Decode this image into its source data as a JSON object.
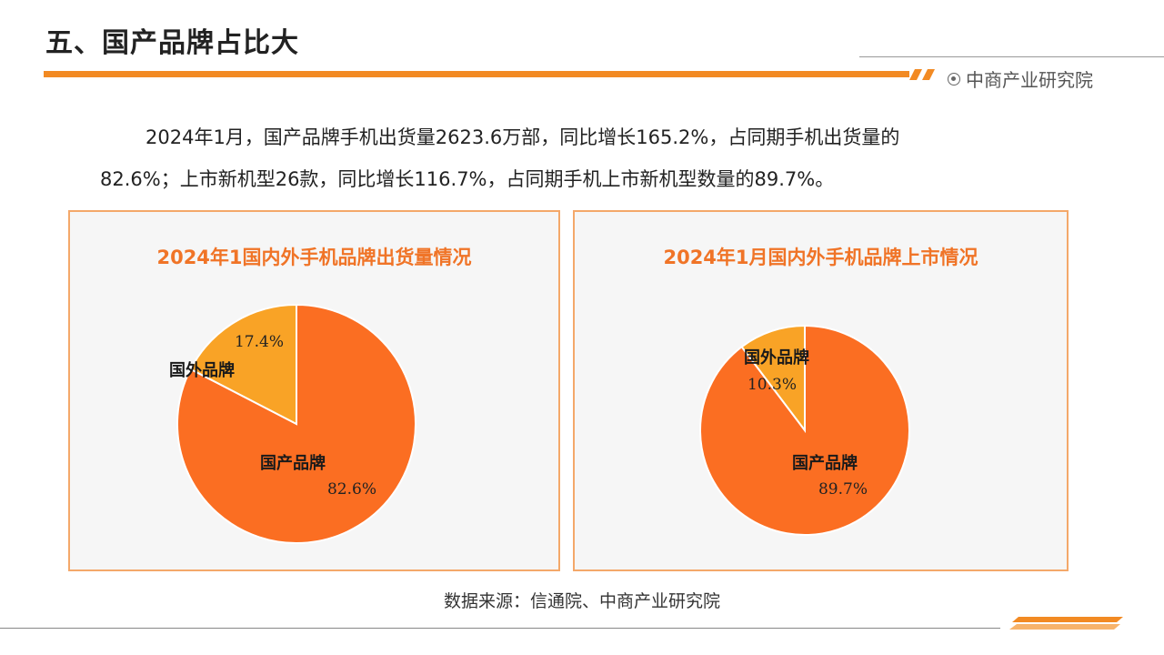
{
  "header": {
    "title": "五、国产品牌占比大",
    "brand": "中商产业研究院"
  },
  "intro": {
    "line1": "2024年1月，国产品牌手机出货量2623.6万部，同比增长165.2%，占同期手机出货量的",
    "line2": "82.6%；上市新机型26款，同比增长116.7%，占同期手机上市新机型数量的89.7%。"
  },
  "colors": {
    "domestic": "#fb6e22",
    "foreign": "#f9a326",
    "accent": "#f28a23",
    "panel_border": "#f4a86a"
  },
  "chart_data": [
    {
      "type": "pie",
      "title": "2024年1国内外手机品牌出货量情况",
      "slices": [
        {
          "label": "国产品牌",
          "value": 82.6,
          "display": "82.6%"
        },
        {
          "label": "国外品牌",
          "value": 17.4,
          "display": "17.4%"
        }
      ]
    },
    {
      "type": "pie",
      "title": "2024年1月国内外手机品牌上市情况",
      "slices": [
        {
          "label": "国产品牌",
          "value": 89.7,
          "display": "89.7%"
        },
        {
          "label": "国外品牌",
          "value": 10.3,
          "display": "10.3%"
        }
      ]
    }
  ],
  "footer": {
    "source": "数据来源：信通院、中商产业研究院"
  }
}
